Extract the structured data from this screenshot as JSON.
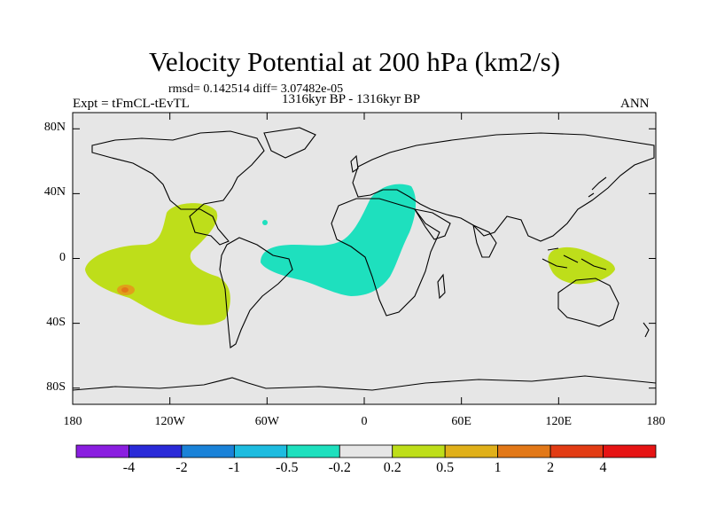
{
  "title": "Velocity Potential at 200 hPa (km2/s)",
  "rmsd_text": "rmsd= 0.142514 diff= 3.07482e-05",
  "experiment": "Expt = tFmCL-tEvTL",
  "period": "1316kyr BP - 1316kyr BP",
  "season": "ANN",
  "map": {
    "projection": "cylindrical equidistant",
    "lon_range": [
      -180,
      180
    ],
    "lat_range": [
      -90,
      90
    ],
    "background_color": "#e6e6e6",
    "y_tick_labels": [
      {
        "lat": 80,
        "label": "80N"
      },
      {
        "lat": 40,
        "label": "40N"
      },
      {
        "lat": 0,
        "label": "0"
      },
      {
        "lat": -40,
        "label": "40S"
      },
      {
        "lat": -80,
        "label": "80S"
      }
    ],
    "x_tick_labels": [
      {
        "lon": -180,
        "label": "180"
      },
      {
        "lon": -120,
        "label": "120W"
      },
      {
        "lon": -60,
        "label": "60W"
      },
      {
        "lon": 0,
        "label": "0"
      },
      {
        "lon": 60,
        "label": "60E"
      },
      {
        "lon": 120,
        "label": "120E"
      },
      {
        "lon": 180,
        "label": "180"
      }
    ]
  },
  "colorbar": {
    "colors": [
      "#8a1ee0",
      "#2a2ad8",
      "#1a82d8",
      "#1ebce0",
      "#1ee0be",
      "#e6e6e6",
      "#bede1a",
      "#e0b01a",
      "#e27818",
      "#e23c14",
      "#e61414"
    ],
    "labels": [
      "-4",
      "-2",
      "-1",
      "-0.5",
      "-0.2",
      "0.2",
      "0.5",
      "1",
      "2",
      "4"
    ]
  }
}
